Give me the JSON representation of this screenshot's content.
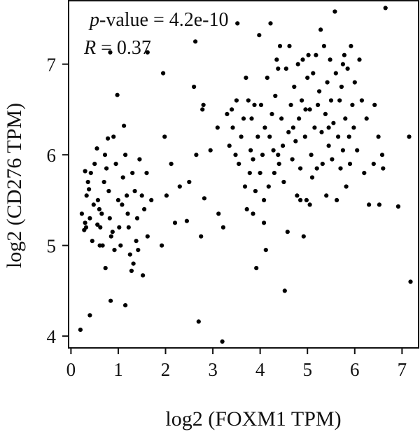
{
  "chart_data": {
    "type": "scatter",
    "xlabel": "log2 (FOXM1 TPM)",
    "ylabel": "log2 (CD276 TPM)",
    "xlim": [
      -0.05,
      7.35
    ],
    "ylim": [
      3.87,
      7.7
    ],
    "x_ticks": [
      0,
      1,
      2,
      3,
      4,
      5,
      6,
      7
    ],
    "y_ticks": [
      4,
      5,
      6,
      7
    ],
    "annotations": {
      "p_symbol": "p",
      "p_text": "-value = 4.2e-10",
      "r_symbol": "R",
      "r_text": " = 0.37"
    },
    "grid": false,
    "legend": "none",
    "marker_color": "#000000",
    "points": [
      [
        0.2,
        4.07
      ],
      [
        0.4,
        4.23
      ],
      [
        0.84,
        4.39
      ],
      [
        1.15,
        4.34
      ],
      [
        0.23,
        5.35
      ],
      [
        0.3,
        5.25
      ],
      [
        0.28,
        5.17
      ],
      [
        0.33,
        5.55
      ],
      [
        0.38,
        5.62
      ],
      [
        0.4,
        5.3
      ],
      [
        0.45,
        5.05
      ],
      [
        0.5,
        5.9
      ],
      [
        0.55,
        6.07
      ],
      [
        0.57,
        5.5
      ],
      [
        0.6,
        5.4
      ],
      [
        0.62,
        5.2
      ],
      [
        0.67,
        5.0
      ],
      [
        0.7,
        5.7
      ],
      [
        0.72,
        6.0
      ],
      [
        0.75,
        5.85
      ],
      [
        0.8,
        5.6
      ],
      [
        0.82,
        5.3
      ],
      [
        0.85,
        5.1
      ],
      [
        0.9,
        6.2
      ],
      [
        0.95,
        5.9
      ],
      [
        1.0,
        5.5
      ],
      [
        1.02,
        5.2
      ],
      [
        1.05,
        5.0
      ],
      [
        1.1,
        5.75
      ],
      [
        1.15,
        6.0
      ],
      [
        1.2,
        5.35
      ],
      [
        1.22,
        5.2
      ],
      [
        1.25,
        4.9
      ],
      [
        1.3,
        5.8
      ],
      [
        1.35,
        5.6
      ],
      [
        1.38,
        5.05
      ],
      [
        1.4,
        5.3
      ],
      [
        1.45,
        5.95
      ],
      [
        1.5,
        5.55
      ],
      [
        1.55,
        5.4
      ],
      [
        1.6,
        5.8
      ],
      [
        1.62,
        5.1
      ],
      [
        1.7,
        5.5
      ],
      [
        0.3,
        5.82
      ],
      [
        0.42,
        5.8
      ],
      [
        0.48,
        5.45
      ],
      [
        0.65,
        5.35
      ],
      [
        0.78,
        6.18
      ],
      [
        0.88,
        5.15
      ],
      [
        0.92,
        4.95
      ],
      [
        1.08,
        5.45
      ],
      [
        1.28,
        4.72
      ],
      [
        0.32,
        5.2
      ],
      [
        0.56,
        5.23
      ],
      [
        0.61,
        5.0
      ],
      [
        0.73,
        4.75
      ],
      [
        1.12,
        6.32
      ],
      [
        1.32,
        4.8
      ],
      [
        1.42,
        4.95
      ],
      [
        1.18,
        5.55
      ],
      [
        0.36,
        5.7
      ],
      [
        1.52,
        4.67
      ],
      [
        0.83,
        7.13
      ],
      [
        0.98,
        6.66
      ],
      [
        1.62,
        7.13
      ],
      [
        1.95,
        6.9
      ],
      [
        1.92,
        5.0
      ],
      [
        1.98,
        6.2
      ],
      [
        2.02,
        5.55
      ],
      [
        2.12,
        5.9
      ],
      [
        2.2,
        5.25
      ],
      [
        2.3,
        5.65
      ],
      [
        2.45,
        5.27
      ],
      [
        2.5,
        5.7
      ],
      [
        2.6,
        6.75
      ],
      [
        2.63,
        7.25
      ],
      [
        2.65,
        6.0
      ],
      [
        2.7,
        4.16
      ],
      [
        2.75,
        5.1
      ],
      [
        2.78,
        6.5
      ],
      [
        2.8,
        6.55
      ],
      [
        2.82,
        5.52
      ],
      [
        2.95,
        6.05
      ],
      [
        3.1,
        6.3
      ],
      [
        3.12,
        5.35
      ],
      [
        3.2,
        3.94
      ],
      [
        3.22,
        5.2
      ],
      [
        3.3,
        6.45
      ],
      [
        3.35,
        6.1
      ],
      [
        3.4,
        6.5
      ],
      [
        3.42,
        6.3
      ],
      [
        3.5,
        6.6
      ],
      [
        3.52,
        7.45
      ],
      [
        3.55,
        5.9
      ],
      [
        3.6,
        6.2
      ],
      [
        3.65,
        6.4
      ],
      [
        3.68,
        5.65
      ],
      [
        3.7,
        6.85
      ],
      [
        3.72,
        5.4
      ],
      [
        3.75,
        6.6
      ],
      [
        3.78,
        5.8
      ],
      [
        3.8,
        6.05
      ],
      [
        3.82,
        6.4
      ],
      [
        3.85,
        5.35
      ],
      [
        3.88,
        6.55
      ],
      [
        3.9,
        5.6
      ],
      [
        3.92,
        4.75
      ],
      [
        3.95,
        6.2
      ],
      [
        3.98,
        7.32
      ],
      [
        4.0,
        5.8
      ],
      [
        4.02,
        6.55
      ],
      [
        4.05,
        6.0
      ],
      [
        4.08,
        5.5
      ],
      [
        4.1,
        6.3
      ],
      [
        4.12,
        4.95
      ],
      [
        4.15,
        6.85
      ],
      [
        4.18,
        5.65
      ],
      [
        4.2,
        6.2
      ],
      [
        4.22,
        7.45
      ],
      [
        4.25,
        6.45
      ],
      [
        4.28,
        6.05
      ],
      [
        4.3,
        5.8
      ],
      [
        4.32,
        6.65
      ],
      [
        4.35,
        7.05
      ],
      [
        4.38,
        6.0
      ],
      [
        4.4,
        5.9
      ],
      [
        4.42,
        7.2
      ],
      [
        4.45,
        6.4
      ],
      [
        4.48,
        6.1
      ],
      [
        4.5,
        5.7
      ],
      [
        4.52,
        4.5
      ],
      [
        4.55,
        6.95
      ],
      [
        4.58,
        5.15
      ],
      [
        4.6,
        6.25
      ],
      [
        4.62,
        7.2
      ],
      [
        4.65,
        6.55
      ],
      [
        4.68,
        5.95
      ],
      [
        4.7,
        6.3
      ],
      [
        4.72,
        6.75
      ],
      [
        4.75,
        6.15
      ],
      [
        4.78,
        5.55
      ],
      [
        4.8,
        7.0
      ],
      [
        4.82,
        6.4
      ],
      [
        4.85,
        5.85
      ],
      [
        4.88,
        6.6
      ],
      [
        4.9,
        7.05
      ],
      [
        4.92,
        5.1
      ],
      [
        4.95,
        6.2
      ],
      [
        4.98,
        5.5
      ],
      [
        5.0,
        6.85
      ],
      [
        5.02,
        7.1
      ],
      [
        5.05,
        6.5
      ],
      [
        5.08,
        6.0
      ],
      [
        5.1,
        5.75
      ],
      [
        5.12,
        6.9
      ],
      [
        5.15,
        6.3
      ],
      [
        5.18,
        7.1
      ],
      [
        5.2,
        5.85
      ],
      [
        5.22,
        6.55
      ],
      [
        5.25,
        6.7
      ],
      [
        5.28,
        7.38
      ],
      [
        5.3,
        6.25
      ],
      [
        5.32,
        5.9
      ],
      [
        5.35,
        7.2
      ],
      [
        5.38,
        6.45
      ],
      [
        5.4,
        5.55
      ],
      [
        5.42,
        6.8
      ],
      [
        5.45,
        6.1
      ],
      [
        5.48,
        7.05
      ],
      [
        5.5,
        6.6
      ],
      [
        5.52,
        5.95
      ],
      [
        5.55,
        6.35
      ],
      [
        5.58,
        7.58
      ],
      [
        5.6,
        6.9
      ],
      [
        5.62,
        5.5
      ],
      [
        5.65,
        6.2
      ],
      [
        5.68,
        6.6
      ],
      [
        5.7,
        5.85
      ],
      [
        5.72,
        6.75
      ],
      [
        5.75,
        6.05
      ],
      [
        5.78,
        7.1
      ],
      [
        5.8,
        6.4
      ],
      [
        5.82,
        5.65
      ],
      [
        5.85,
        6.95
      ],
      [
        5.88,
        6.2
      ],
      [
        5.9,
        5.9
      ],
      [
        5.92,
        7.2
      ],
      [
        5.95,
        6.55
      ],
      [
        5.98,
        6.3
      ],
      [
        6.0,
        6.8
      ],
      [
        6.05,
        6.05
      ],
      [
        6.1,
        7.05
      ],
      [
        6.15,
        6.6
      ],
      [
        6.2,
        5.8
      ],
      [
        6.25,
        6.4
      ],
      [
        6.3,
        5.45
      ],
      [
        6.4,
        5.9
      ],
      [
        6.42,
        6.55
      ],
      [
        6.5,
        6.2
      ],
      [
        6.52,
        5.45
      ],
      [
        6.58,
        6.0
      ],
      [
        6.6,
        5.85
      ],
      [
        6.65,
        7.62
      ],
      [
        6.92,
        5.43
      ],
      [
        7.15,
        6.2
      ],
      [
        7.18,
        4.6
      ],
      [
        4.38,
        6.95
      ],
      [
        4.85,
        5.5
      ],
      [
        5.45,
        6.3
      ],
      [
        3.48,
        6.0
      ],
      [
        4.08,
        5.25
      ],
      [
        5.75,
        7.0
      ],
      [
        4.96,
        6.5
      ],
      [
        3.85,
        5.95
      ],
      [
        5.05,
        5.45
      ]
    ]
  }
}
